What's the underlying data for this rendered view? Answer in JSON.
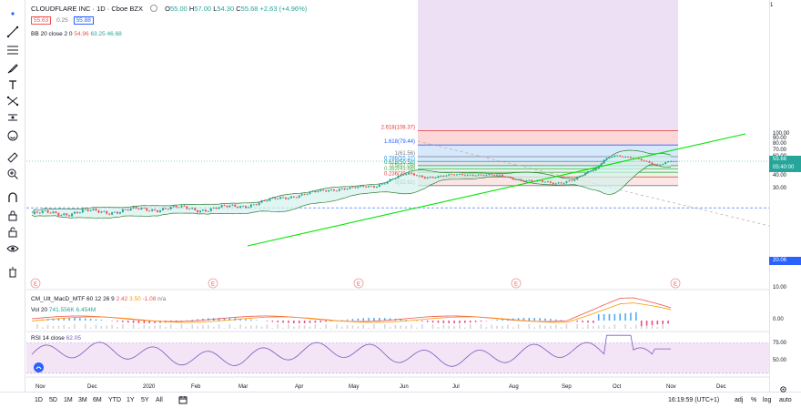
{
  "symbol": {
    "name": "CLOUDFLARE INC",
    "interval": "1D",
    "exchange": "Cboe BZX",
    "open_label": "O",
    "open": "55.00",
    "high_label": "H",
    "high": "57.00",
    "low_label": "L",
    "low": "54.30",
    "close_label": "C",
    "close": "55.68",
    "change": "+2.63 (+4.96%)",
    "bid": "55.63",
    "spread": "0.25",
    "ask": "55.88"
  },
  "indicators": {
    "bb": {
      "label": "BB 20 close 2 0",
      "v1": "54.96",
      "v2": "63.25",
      "v3": "46.68"
    },
    "macd": {
      "label": "CM_Ult_MacD_MTF 60 12 26 9",
      "v1": "2.42",
      "v2": "3.50",
      "v3": "-1.08",
      "v4": "n/a"
    },
    "vol": {
      "label": "Vol 20",
      "v1": "741.556K",
      "v2": "6.454M"
    },
    "rsi": {
      "label": "RSI 14 close",
      "v1": "62.05"
    }
  },
  "fib_levels": [
    {
      "label": "2.618(108.37)",
      "price": 108.37,
      "color": "#e53935"
    },
    {
      "label": "1.618(79.44)",
      "price": 79.44,
      "color": "#2962ff"
    },
    {
      "label": "1(61.56)",
      "price": 61.56,
      "color": "#787b86"
    },
    {
      "label": "0.786(55.37)",
      "price": 55.37,
      "color": "#2196f3"
    },
    {
      "label": "0.618(50.50)",
      "price": 50.5,
      "color": "#089981"
    },
    {
      "label": "0.5(47.09)",
      "price": 47.09,
      "color": "#4caf50"
    },
    {
      "label": "0.382(43.68)",
      "price": 43.68,
      "color": "#4caf50"
    },
    {
      "label": "0.236(39.45)",
      "price": 39.45,
      "color": "#e53935"
    },
    {
      "label": "0(32.62)",
      "price": 32.62,
      "color": "#787b86"
    }
  ],
  "price_axis": {
    "ticks": [
      "100.00",
      "90.00",
      "80.00",
      "70.00",
      "60.00",
      "50.00",
      "40.00",
      "30.00"
    ],
    "last_price": "55.68",
    "countdown": "05:40:00",
    "level_badge": "20.06",
    "macd_ticks": [
      "10.00",
      "0.00"
    ],
    "rsi_ticks": [
      "75.00",
      "50.00"
    ]
  },
  "time_axis": [
    "Nov",
    "Dec",
    "2020",
    "Feb",
    "Mar",
    "Apr",
    "May",
    "Jun",
    "Jul",
    "Aug",
    "Sep",
    "Oct",
    "Nov",
    "Dec"
  ],
  "earnings_markers": [
    "E",
    "E",
    "E",
    "E",
    "E"
  ],
  "bottom_bar": {
    "ranges": [
      "1D",
      "5D",
      "1M",
      "3M",
      "6M",
      "YTD",
      "1Y",
      "5Y",
      "All"
    ],
    "clock": "16:19:59 (UTC+1)",
    "toggles": [
      "adj",
      "%",
      "log",
      "auto"
    ]
  },
  "colors": {
    "up": "#26a69a",
    "down": "#ef5350",
    "trendline": "#00e600",
    "bollinger": "#2e7d32",
    "rsi": "#7e57c2",
    "rsi_fill": "#f3e5f5",
    "accent": "#2962ff"
  }
}
